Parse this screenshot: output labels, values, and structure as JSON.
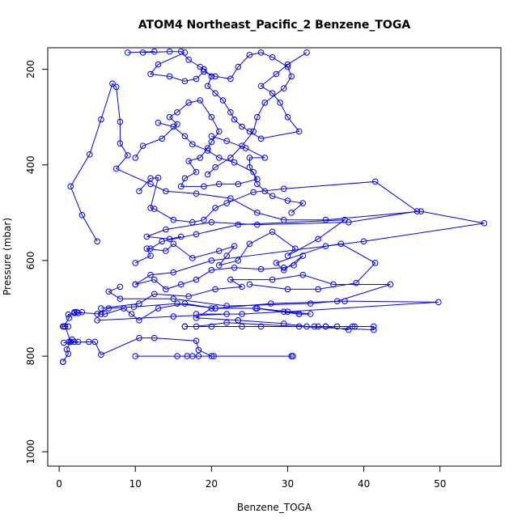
{
  "chart_data": {
    "type": "line",
    "title": "ATOM4 Northeast_Pacific_2 Benzene_TOGA",
    "xlabel": "Benzene_TOGA",
    "ylabel": "Pressure (mbar)",
    "xlim": [
      -1.5,
      58
    ],
    "ylim": [
      1030,
      155
    ],
    "y_reversed": true,
    "x_ticks": [
      0,
      10,
      20,
      30,
      40,
      50
    ],
    "y_ticks": [
      200,
      400,
      600,
      800,
      1000
    ],
    "grid": false,
    "markers": "open-circle",
    "color": "#0000ff",
    "series": [
      {
        "points": [
          [
            0.5,
            812
          ],
          [
            0.5,
            812
          ],
          [
            0.5,
            812
          ],
          [
            1.2,
            795
          ],
          [
            1.0,
            786
          ],
          [
            1.5,
            770
          ],
          [
            1.7,
            765
          ],
          [
            1.3,
            770
          ],
          [
            2.5,
            770
          ],
          [
            2.0,
            770
          ],
          [
            1.5,
            770
          ],
          [
            0.8,
            738
          ],
          [
            0.5,
            738
          ],
          [
            1.2,
            738
          ],
          [
            0.6,
            738
          ],
          [
            1.3,
            720
          ],
          [
            1.2,
            713
          ],
          [
            2.0,
            710
          ],
          [
            2.3,
            708
          ],
          [
            2.5,
            710
          ],
          [
            3.0,
            708
          ]
        ]
      },
      {
        "points": [
          [
            10.0,
            800
          ],
          [
            15.5,
            800
          ],
          [
            16.8,
            800
          ],
          [
            17.5,
            800
          ],
          [
            18.3,
            800
          ],
          [
            20.3,
            800
          ],
          [
            30.5,
            800
          ],
          [
            30.7,
            800
          ],
          [
            30.5,
            800
          ],
          [
            20.0,
            800
          ],
          [
            18.3,
            787
          ],
          [
            18.0,
            768
          ],
          [
            12.5,
            762
          ],
          [
            10.5,
            762
          ],
          [
            5.5,
            797
          ],
          [
            4.7,
            770
          ],
          [
            3.9,
            770
          ],
          [
            0.6,
            772
          ]
        ]
      },
      {
        "points": [
          [
            5.0,
            725
          ],
          [
            15.0,
            717
          ],
          [
            22.0,
            712
          ],
          [
            18.0,
            712
          ],
          [
            24.0,
            712
          ],
          [
            29.5,
            707
          ],
          [
            31.5,
            712
          ],
          [
            33.0,
            712
          ],
          [
            26.0,
            700
          ],
          [
            20.0,
            700
          ],
          [
            18.0,
            720
          ],
          [
            23.5,
            725
          ],
          [
            23.5,
            725
          ],
          [
            29.5,
            732
          ],
          [
            32.5,
            738
          ],
          [
            34.0,
            738
          ],
          [
            36.5,
            738
          ],
          [
            38.5,
            738
          ],
          [
            41.3,
            738
          ],
          [
            41.3,
            745
          ],
          [
            31.5,
            738
          ],
          [
            22.0,
            730
          ],
          [
            18.0,
            738
          ],
          [
            16.5,
            738
          ],
          [
            20.0,
            738
          ],
          [
            16.5,
            738
          ],
          [
            24.0,
            738
          ],
          [
            26.5,
            738
          ],
          [
            33.5,
            738
          ],
          [
            35.0,
            738
          ],
          [
            38.8,
            738
          ],
          [
            35.0,
            738
          ],
          [
            38.0,
            745
          ]
        ]
      },
      {
        "points": [
          [
            2.0,
            708
          ],
          [
            5.5,
            712
          ],
          [
            6.0,
            712
          ],
          [
            8.5,
            700
          ],
          [
            9.5,
            712
          ],
          [
            10.5,
            725
          ],
          [
            13.0,
            700
          ],
          [
            16.5,
            690
          ],
          [
            20.5,
            700
          ],
          [
            27.8,
            690
          ],
          [
            37.5,
            685
          ],
          [
            49.8,
            687
          ],
          [
            30.0,
            707
          ],
          [
            31.5,
            712
          ],
          [
            25.8,
            700
          ],
          [
            20.5,
            700
          ],
          [
            15.5,
            690
          ],
          [
            9.8,
            697
          ],
          [
            6.5,
            700
          ],
          [
            5.0,
            712
          ]
        ]
      },
      {
        "points": [
          [
            5.5,
            700
          ],
          [
            10.5,
            690
          ],
          [
            12.5,
            670
          ],
          [
            17.0,
            675
          ],
          [
            20.5,
            660
          ],
          [
            24.0,
            655
          ],
          [
            22.5,
            640
          ],
          [
            28.0,
            640
          ],
          [
            32.0,
            630
          ],
          [
            36.0,
            650
          ],
          [
            43.5,
            650
          ],
          [
            36.5,
            685
          ],
          [
            33.0,
            690
          ],
          [
            22.0,
            695
          ],
          [
            15.0,
            680
          ],
          [
            8.0,
            680
          ],
          [
            6.5,
            665
          ],
          [
            8.0,
            655
          ]
        ]
      },
      {
        "points": [
          [
            10.0,
            650
          ],
          [
            12.5,
            640
          ],
          [
            14.0,
            660
          ],
          [
            16.0,
            650
          ],
          [
            18.0,
            640
          ],
          [
            20.0,
            620
          ],
          [
            23.0,
            615
          ],
          [
            26.5,
            618
          ],
          [
            29.5,
            615
          ],
          [
            30.8,
            610
          ],
          [
            32.0,
            590
          ],
          [
            29.5,
            620
          ],
          [
            28.5,
            605
          ],
          [
            35.0,
            570
          ],
          [
            37.0,
            565
          ],
          [
            41.5,
            605
          ],
          [
            39.0,
            647
          ],
          [
            34.0,
            660
          ],
          [
            30.0,
            660
          ],
          [
            25.0,
            650
          ]
        ]
      },
      {
        "points": [
          [
            10.0,
            605
          ],
          [
            12.0,
            590
          ],
          [
            11.5,
            575
          ],
          [
            14.0,
            580
          ],
          [
            15.0,
            565
          ],
          [
            17.5,
            595
          ],
          [
            21.0,
            580
          ],
          [
            23.0,
            570
          ],
          [
            22.0,
            590
          ],
          [
            21.0,
            610
          ],
          [
            23.5,
            600
          ],
          [
            25.0,
            565
          ],
          [
            28.0,
            540
          ],
          [
            31.0,
            575
          ],
          [
            30.0,
            590
          ],
          [
            34.0,
            555
          ],
          [
            37.5,
            515
          ],
          [
            23.5,
            525
          ],
          [
            18.0,
            545
          ],
          [
            13.5,
            560
          ],
          [
            12.0,
            575
          ]
        ]
      },
      {
        "points": [
          [
            5.0,
            560
          ],
          [
            3.0,
            505
          ],
          [
            1.5,
            445
          ],
          [
            4.0,
            378
          ],
          [
            5.5,
            305
          ],
          [
            7.0,
            230
          ],
          [
            7.5,
            237
          ],
          [
            8.0,
            310
          ],
          [
            8.0,
            355
          ],
          [
            9.0,
            380
          ],
          [
            7.5,
            408
          ],
          [
            12.0,
            440
          ],
          [
            14.0,
            455
          ],
          [
            18.0,
            460
          ],
          [
            22.5,
            470
          ],
          [
            26.0,
            500
          ],
          [
            29.5,
            515
          ],
          [
            35.0,
            515
          ],
          [
            47.5,
            497
          ],
          [
            55.8,
            522
          ],
          [
            40.0,
            560
          ],
          [
            20.0,
            600
          ],
          [
            15.0,
            625
          ],
          [
            12.0,
            630
          ],
          [
            10.0,
            650
          ]
        ]
      },
      {
        "points": [
          [
            10.5,
            455
          ],
          [
            12.0,
            428
          ],
          [
            13.0,
            427
          ],
          [
            12.0,
            490
          ],
          [
            12.5,
            492
          ],
          [
            15.0,
            515
          ],
          [
            17.5,
            520
          ],
          [
            19.0,
            515
          ],
          [
            20.5,
            490
          ],
          [
            22.0,
            480
          ],
          [
            25.5,
            457
          ],
          [
            29.5,
            450
          ],
          [
            41.5,
            435
          ],
          [
            47.0,
            497
          ],
          [
            38.0,
            520
          ],
          [
            26.0,
            525
          ],
          [
            20.0,
            520
          ],
          [
            14.0,
            535
          ],
          [
            11.5,
            550
          ],
          [
            14.5,
            555
          ],
          [
            16.0,
            550
          ]
        ]
      },
      {
        "points": [
          [
            10.0,
            385
          ],
          [
            11.0,
            360
          ],
          [
            13.5,
            345
          ],
          [
            15.5,
            315
          ],
          [
            14.5,
            300
          ],
          [
            15.5,
            290
          ],
          [
            17.0,
            270
          ],
          [
            18.5,
            265
          ],
          [
            20.0,
            300
          ],
          [
            21.0,
            330
          ],
          [
            20.0,
            352
          ],
          [
            19.5,
            365
          ],
          [
            18.5,
            385
          ],
          [
            17.0,
            392
          ],
          [
            18.0,
            415
          ],
          [
            16.5,
            428
          ],
          [
            16.0,
            445
          ],
          [
            19.0,
            445
          ],
          [
            21.0,
            440
          ],
          [
            23.5,
            440
          ],
          [
            26.0,
            430
          ],
          [
            25.0,
            405
          ],
          [
            25.0,
            385
          ],
          [
            27.0,
            385
          ],
          [
            24.5,
            365
          ],
          [
            22.0,
            350
          ],
          [
            20.0,
            340
          ]
        ]
      },
      {
        "points": [
          [
            13.0,
            312
          ],
          [
            15.0,
            320
          ],
          [
            16.5,
            340
          ],
          [
            17.5,
            357
          ],
          [
            19.5,
            370
          ],
          [
            21.0,
            385
          ],
          [
            23.0,
            395
          ],
          [
            25.5,
            415
          ],
          [
            26.0,
            440
          ],
          [
            27.0,
            455
          ],
          [
            28.0,
            465
          ],
          [
            30.0,
            475
          ],
          [
            32.0,
            480
          ],
          [
            30.5,
            500
          ]
        ]
      },
      {
        "points": [
          [
            9.0,
            165
          ],
          [
            12.5,
            163
          ],
          [
            11.0,
            165
          ],
          [
            14.5,
            163
          ],
          [
            16.0,
            163
          ],
          [
            17.0,
            180
          ],
          [
            18.5,
            195
          ],
          [
            19.0,
            200
          ],
          [
            20.0,
            215
          ],
          [
            19.5,
            235
          ],
          [
            20.5,
            250
          ],
          [
            21.5,
            265
          ],
          [
            22.5,
            290
          ],
          [
            23.0,
            305
          ],
          [
            24.0,
            320
          ],
          [
            25.0,
            330
          ],
          [
            26.5,
            345
          ],
          [
            31.5,
            330
          ],
          [
            30.0,
            300
          ],
          [
            29.0,
            270
          ],
          [
            28.0,
            250
          ],
          [
            26.5,
            235
          ],
          [
            28.5,
            210
          ],
          [
            30.0,
            190
          ],
          [
            32.5,
            165
          ]
        ]
      },
      {
        "points": [
          [
            16.5,
            165
          ],
          [
            13.0,
            190
          ],
          [
            12.0,
            210
          ],
          [
            14.5,
            215
          ],
          [
            16.5,
            225
          ],
          [
            18.0,
            220
          ],
          [
            19.0,
            205
          ],
          [
            20.5,
            215
          ],
          [
            22.5,
            220
          ],
          [
            23.5,
            195
          ],
          [
            25.0,
            170
          ],
          [
            26.5,
            165
          ],
          [
            28.0,
            175
          ],
          [
            30.0,
            195
          ],
          [
            30.5,
            215
          ],
          [
            29.5,
            240
          ],
          [
            27.0,
            270
          ],
          [
            26.0,
            300
          ],
          [
            25.5,
            330
          ],
          [
            24.0,
            360
          ],
          [
            22.5,
            385
          ],
          [
            20.5,
            405
          ],
          [
            19.5,
            420
          ]
        ]
      }
    ]
  }
}
